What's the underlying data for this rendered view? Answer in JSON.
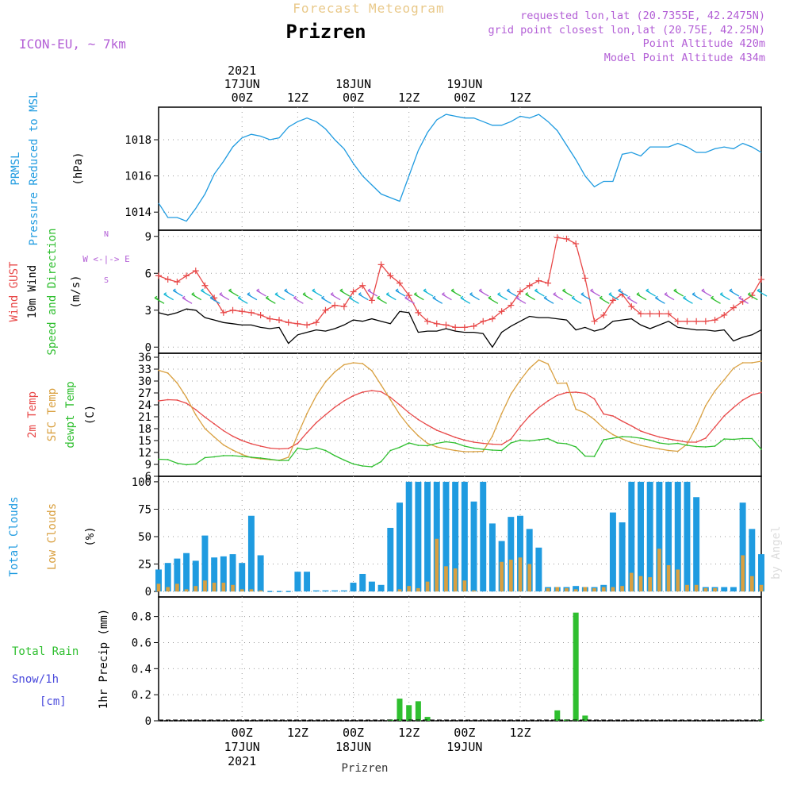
{
  "header": {
    "supertitle": "Forecast Meteogram",
    "station": "Prizren",
    "model": "ICON-EU, ~ 7km",
    "requested": "requested lon,lat (20.7355E, 42.2475N)",
    "gridpoint": "grid point closest lon,lat (20.75E, 42.25N)",
    "point_alt": "Point Altitude 420m",
    "model_alt": "Model Point Altitude 434m",
    "credit": "by Angel",
    "footer": "Prizren"
  },
  "colors": {
    "blue": "#1f9be0",
    "red": "#e84848",
    "green": "#2fbf2f",
    "orange": "#d9a040",
    "purple": "#b35fd6",
    "black": "#000000",
    "snow": "#4b4bdc",
    "cyan": "#14b7d6"
  },
  "chart_data": [
    {
      "id": "pressure",
      "type": "line",
      "title": "Pressure Reduced to MSL",
      "ylabel_lines": [
        "PRMSL",
        "Pressure Reduced to MSL",
        "(hPa)"
      ],
      "ylim": [
        1013,
        1019.8
      ],
      "yticks": [
        1014,
        1016,
        1018
      ],
      "x_hours": [
        0,
        2,
        4,
        6,
        8,
        10,
        12,
        14,
        16,
        18,
        20,
        22,
        24,
        26,
        28,
        30,
        32,
        34,
        36,
        38,
        40,
        42,
        44,
        46,
        48,
        50,
        52,
        54,
        56,
        58,
        60,
        62,
        64,
        66,
        68,
        70,
        72,
        74,
        76,
        78,
        80,
        82,
        84,
        86,
        88,
        90,
        92,
        94,
        96,
        98,
        100,
        102,
        104,
        106,
        108,
        110,
        112,
        114,
        116,
        118,
        120,
        122,
        124,
        126,
        128,
        130
      ],
      "series": [
        {
          "name": "PRMSL",
          "color_key": "blue",
          "values": [
            1014.5,
            1013.7,
            1013.7,
            1013.5,
            1014.2,
            1015,
            1016.1,
            1016.8,
            1017.6,
            1018.1,
            1018.3,
            1018.2,
            1018,
            1018.1,
            1018.7,
            1019,
            1019.2,
            1019,
            1018.6,
            1018,
            1017.5,
            1016.7,
            1016,
            1015.5,
            1015,
            1014.8,
            1014.6,
            1016,
            1017.4,
            1018.4,
            1019.1,
            1019.4,
            1019.3,
            1019.2,
            1019.2,
            1019,
            1018.8,
            1018.8,
            1019,
            1019.3,
            1019.2,
            1019.4,
            1019,
            1018.5,
            1017.7,
            1016.9,
            1016,
            1015.4,
            1015.7,
            1015.7,
            1017.2,
            1017.3,
            1017.1,
            1017.6,
            1017.6,
            1017.6,
            1017.8,
            1017.6,
            1017.3,
            1017.3,
            1017.5,
            1017.6,
            1017.5,
            1017.8,
            1017.6,
            1017.3
          ]
        }
      ]
    },
    {
      "id": "wind",
      "type": "line",
      "ylabel_lines": [
        "Wind GUST",
        "10m Wind",
        "Speed and Direction",
        "(m/s)"
      ],
      "compass": [
        "N",
        "W <-|-> E",
        "S"
      ],
      "ylim": [
        -0.5,
        9.5
      ],
      "yticks": [
        0,
        3,
        6,
        9
      ],
      "x_hours": [
        0,
        2,
        4,
        6,
        8,
        10,
        12,
        14,
        16,
        18,
        20,
        22,
        24,
        26,
        28,
        30,
        32,
        34,
        36,
        38,
        40,
        42,
        44,
        46,
        48,
        50,
        52,
        54,
        56,
        58,
        60,
        62,
        64,
        66,
        68,
        70,
        72,
        74,
        76,
        78,
        80,
        82,
        84,
        86,
        88,
        90,
        92,
        94,
        96,
        98,
        100,
        102,
        104,
        106,
        108,
        110,
        112,
        114,
        116,
        118,
        120,
        122,
        124,
        126,
        128,
        130
      ],
      "series": [
        {
          "name": "Wind GUST",
          "color_key": "red",
          "values": [
            5.8,
            5.5,
            5.3,
            5.8,
            6.2,
            5,
            4,
            2.8,
            3,
            2.9,
            2.8,
            2.6,
            2.3,
            2.2,
            2,
            1.9,
            1.8,
            2,
            3,
            3.4,
            3.3,
            4.5,
            5,
            3.8,
            6.7,
            5.8,
            5.2,
            4.2,
            2.8,
            2.1,
            1.9,
            1.8,
            1.6,
            1.6,
            1.7,
            2.1,
            2.3,
            2.9,
            3.4,
            4.5,
            5,
            5.4,
            5.2,
            8.9,
            8.8,
            8.4,
            5.6,
            2.1,
            2.6,
            3.8,
            4.3,
            3.3,
            2.7,
            2.7,
            2.7,
            2.7,
            2.1,
            2.1,
            2.1,
            2.1,
            2.2,
            2.6,
            3.2,
            3.7,
            4.2,
            5.5
          ]
        },
        {
          "name": "10m Wind",
          "color_key": "black",
          "values": [
            2.8,
            2.6,
            2.8,
            3.1,
            3,
            2.4,
            2.2,
            2,
            1.9,
            1.8,
            1.8,
            1.6,
            1.5,
            1.6,
            0.3,
            1,
            1.2,
            1.4,
            1.3,
            1.5,
            1.8,
            2.2,
            2.1,
            2.3,
            2.1,
            1.9,
            2.9,
            2.8,
            1.2,
            1.3,
            1.3,
            1.5,
            1.3,
            1.2,
            1.2,
            1.1,
            0,
            1.2,
            1.7,
            2.1,
            2.5,
            2.4,
            2.4,
            2.3,
            2.2,
            1.4,
            1.6,
            1.3,
            1.5,
            2.1,
            2.2,
            2.3,
            1.8,
            1.5,
            1.8,
            2.1,
            1.6,
            1.5,
            1.4,
            1.4,
            1.3,
            1.4,
            0.5,
            0.8,
            1,
            1.4
          ]
        }
      ]
    },
    {
      "id": "temperature",
      "type": "line",
      "ylabel_lines": [
        "2m Temp",
        "SFC Temp",
        "dewpt Temp",
        "(C)"
      ],
      "ylim": [
        6,
        37
      ],
      "yticks": [
        6,
        9,
        12,
        15,
        18,
        21,
        24,
        27,
        30,
        33,
        36
      ],
      "x_hours": [
        0,
        2,
        4,
        6,
        8,
        10,
        12,
        14,
        16,
        18,
        20,
        22,
        24,
        26,
        28,
        30,
        32,
        34,
        36,
        38,
        40,
        42,
        44,
        46,
        48,
        50,
        52,
        54,
        56,
        58,
        60,
        62,
        64,
        66,
        68,
        70,
        72,
        74,
        76,
        78,
        80,
        82,
        84,
        86,
        88,
        90,
        92,
        94,
        96,
        98,
        100,
        102,
        104,
        106,
        108,
        110,
        112,
        114,
        116,
        118,
        120,
        122,
        124,
        126,
        128,
        130
      ],
      "series": [
        {
          "name": "2m Temp",
          "color_key": "red",
          "values": [
            25,
            25.3,
            25.2,
            24.4,
            22.8,
            20.9,
            19.2,
            17.5,
            16.1,
            15,
            14.2,
            13.6,
            13.1,
            12.9,
            13,
            14.3,
            17,
            19.5,
            21.5,
            23.4,
            25,
            26.3,
            27.2,
            27.6,
            27.3,
            25.9,
            24,
            22,
            20.3,
            18.9,
            17.6,
            16.7,
            15.8,
            15.1,
            14.6,
            14.3,
            14.1,
            14,
            15.4,
            18.5,
            21.2,
            23.3,
            25,
            26.4,
            27.1,
            27.2,
            26.9,
            25.5,
            21.7,
            21.2,
            19.9,
            18.7,
            17.4,
            16.6,
            15.9,
            15.4,
            15,
            14.6,
            14.6,
            15.6,
            18.4,
            21.2,
            23.3,
            25.2,
            26.5,
            27.1
          ]
        },
        {
          "name": "SFC Temp",
          "color_key": "orange",
          "values": [
            32.7,
            32,
            29.5,
            25.9,
            21.5,
            18,
            15.9,
            13.9,
            12.6,
            11.5,
            10.7,
            10.4,
            10.2,
            10,
            10.8,
            16.5,
            21.8,
            26.3,
            29.8,
            32.3,
            34.1,
            34.6,
            34.4,
            32.6,
            29,
            25.3,
            21.6,
            18.6,
            16.2,
            14.3,
            13.4,
            12.9,
            12.5,
            12.2,
            12.2,
            12.3,
            16.1,
            21.8,
            26.7,
            30.2,
            33.2,
            35.3,
            34.3,
            29.4,
            29.5,
            22.9,
            22,
            20.3,
            18.1,
            16.5,
            15.4,
            14.5,
            13.8,
            13.3,
            12.9,
            12.5,
            12.3,
            14.1,
            18.6,
            23.8,
            27.5,
            30.3,
            33.2,
            34.6,
            34.6,
            35
          ]
        },
        {
          "name": "dewpt Temp",
          "color_key": "green",
          "values": [
            10.3,
            10.2,
            9.3,
            8.9,
            9.1,
            10.7,
            10.9,
            11.2,
            11.2,
            11,
            10.8,
            10.6,
            10.3,
            10,
            10,
            13.1,
            12.7,
            13.2,
            12.5,
            11.2,
            10.1,
            9.1,
            8.6,
            8.4,
            9.7,
            12.5,
            13.3,
            14.4,
            13.8,
            13.7,
            14.3,
            14.7,
            14.4,
            13.6,
            13.1,
            12.8,
            12.6,
            12.5,
            14.4,
            15.1,
            14.9,
            15.2,
            15.5,
            14.4,
            14.2,
            13.4,
            11.1,
            11,
            15.2,
            15.6,
            16,
            15.9,
            15.6,
            15.1,
            14.4,
            14.1,
            14.3,
            13.8,
            13.5,
            13.4,
            13.6,
            15.4,
            15.3,
            15.5,
            15.5,
            12.8
          ]
        }
      ]
    },
    {
      "id": "clouds",
      "type": "bar",
      "ylabel_lines": [
        "Total Clouds",
        "Low Clouds",
        "(%)"
      ],
      "ylim": [
        -5,
        105
      ],
      "yticks": [
        0,
        25,
        50,
        75,
        100
      ],
      "x_hours": [
        0,
        2,
        4,
        6,
        8,
        10,
        12,
        14,
        16,
        18,
        20,
        22,
        24,
        26,
        28,
        30,
        32,
        34,
        36,
        38,
        40,
        42,
        44,
        46,
        48,
        50,
        52,
        54,
        56,
        58,
        60,
        62,
        64,
        66,
        68,
        70,
        72,
        74,
        76,
        78,
        80,
        82,
        84,
        86,
        88,
        90,
        92,
        94,
        96,
        98,
        100,
        102,
        104,
        106,
        108,
        110,
        112,
        114,
        116,
        118,
        120,
        122,
        124,
        126,
        128,
        130
      ],
      "series": [
        {
          "name": "Total Clouds",
          "color_key": "blue",
          "values": [
            20,
            26,
            30,
            35,
            28,
            51,
            31,
            32,
            34,
            26,
            69,
            33,
            0,
            0,
            0,
            18,
            18,
            1,
            1,
            1,
            1,
            8,
            16,
            9,
            6,
            58,
            81,
            100,
            100,
            100,
            100,
            100,
            100,
            100,
            82,
            100,
            62,
            46,
            68,
            69,
            57,
            40,
            4,
            4,
            4,
            5,
            4,
            4,
            6,
            72,
            63,
            100,
            100,
            100,
            100,
            100,
            100,
            100,
            86,
            4,
            4,
            4,
            4,
            81,
            57,
            34
          ]
        },
        {
          "name": "Low Clouds",
          "color_key": "orange",
          "values": [
            7,
            4,
            7,
            2,
            5,
            10,
            8,
            8,
            6,
            2,
            2,
            1,
            0,
            0,
            0,
            0,
            0,
            0,
            0,
            0,
            0,
            0,
            0,
            0,
            0,
            0,
            2,
            5,
            3,
            9,
            48,
            23,
            21,
            10,
            1,
            0,
            0,
            27,
            29,
            31,
            25,
            0,
            3,
            4,
            3,
            2,
            4,
            3,
            4,
            4,
            5,
            17,
            14,
            13,
            39,
            24,
            20,
            6,
            6,
            3,
            3,
            0,
            0,
            33,
            14,
            6
          ]
        }
      ]
    },
    {
      "id": "precip",
      "type": "bar",
      "ylabel_lines": [
        "Total  Rain",
        "Snow/1h",
        "[cm]",
        "1hr Precip (mm)"
      ],
      "ylim": [
        0,
        0.95
      ],
      "yticks": [
        0,
        0.2,
        0.4,
        0.6,
        0.8
      ],
      "bars": [
        {
          "hour": 50,
          "value": 0.01
        },
        {
          "hour": 52,
          "value": 0.17
        },
        {
          "hour": 54,
          "value": 0.12
        },
        {
          "hour": 56,
          "value": 0.15
        },
        {
          "hour": 58,
          "value": 0.03
        },
        {
          "hour": 86,
          "value": 0.08
        },
        {
          "hour": 88,
          "value": 0.01
        },
        {
          "hour": 90,
          "value": 0.83
        },
        {
          "hour": 92,
          "value": 0.04
        },
        {
          "hour": 130,
          "value": 0.01
        }
      ]
    }
  ],
  "time_axis": {
    "top": [
      {
        "hour": 18,
        "lines": [
          "2021",
          "17JUN",
          "00Z"
        ]
      },
      {
        "hour": 30,
        "lines": [
          "12Z"
        ]
      },
      {
        "hour": 42,
        "lines": [
          "18JUN",
          "00Z"
        ]
      },
      {
        "hour": 54,
        "lines": [
          "12Z"
        ]
      },
      {
        "hour": 66,
        "lines": [
          "19JUN",
          "00Z"
        ]
      },
      {
        "hour": 78,
        "lines": [
          "12Z"
        ]
      }
    ],
    "bottom": [
      {
        "hour": 18,
        "lines": [
          "00Z",
          "17JUN",
          "2021"
        ]
      },
      {
        "hour": 30,
        "lines": [
          "12Z"
        ]
      },
      {
        "hour": 42,
        "lines": [
          "00Z",
          "18JUN"
        ]
      },
      {
        "hour": 54,
        "lines": [
          "12Z"
        ]
      },
      {
        "hour": 66,
        "lines": [
          "00Z",
          "19JUN"
        ]
      },
      {
        "hour": 78,
        "lines": [
          "12Z"
        ]
      }
    ]
  }
}
